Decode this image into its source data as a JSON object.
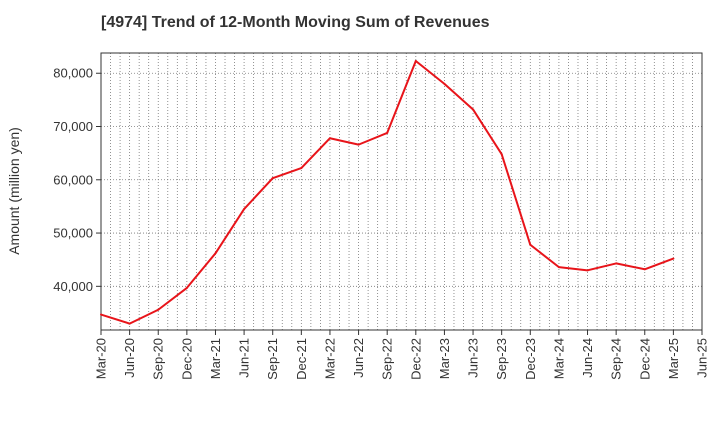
{
  "chart_data": {
    "type": "line",
    "title": "[4974]  Trend of 12-Month Moving Sum of Revenues",
    "ylabel": "Amount (million yen)",
    "xlabel": "",
    "ylim": [
      31800,
      83800
    ],
    "yticks": [
      40000,
      50000,
      60000,
      70000,
      80000
    ],
    "ytick_labels": [
      "40,000",
      "50,000",
      "60,000",
      "70,000",
      "80,000"
    ],
    "xtick_labels": [
      "Mar-20",
      "Jun-20",
      "Sep-20",
      "Dec-20",
      "Mar-21",
      "Jun-21",
      "Sep-21",
      "Dec-21",
      "Mar-22",
      "Jun-22",
      "Sep-22",
      "Dec-22",
      "Mar-23",
      "Jun-23",
      "Sep-23",
      "Dec-23",
      "Mar-24",
      "Jun-24",
      "Sep-24",
      "Dec-24",
      "Mar-25",
      "Jun-25"
    ],
    "grid": true,
    "legend": "none",
    "line_color": "#e8141a",
    "series": [
      {
        "x": [
          "Mar-20",
          "Jun-20",
          "Sep-20",
          "Dec-20",
          "Mar-21",
          "Jun-21",
          "Sep-21",
          "Dec-21",
          "Mar-22",
          "Jun-22",
          "Sep-22",
          "Dec-22",
          "Mar-23",
          "Jun-23",
          "Sep-23",
          "Dec-23",
          "Mar-24",
          "Jun-24",
          "Sep-24",
          "Dec-24",
          "Mar-25"
        ],
        "values": [
          34700,
          33000,
          35600,
          39700,
          46200,
          54500,
          60300,
          62200,
          67800,
          66600,
          68800,
          82300,
          78000,
          73200,
          64800,
          47800,
          43600,
          43000,
          44300,
          43200,
          45200
        ]
      }
    ]
  }
}
